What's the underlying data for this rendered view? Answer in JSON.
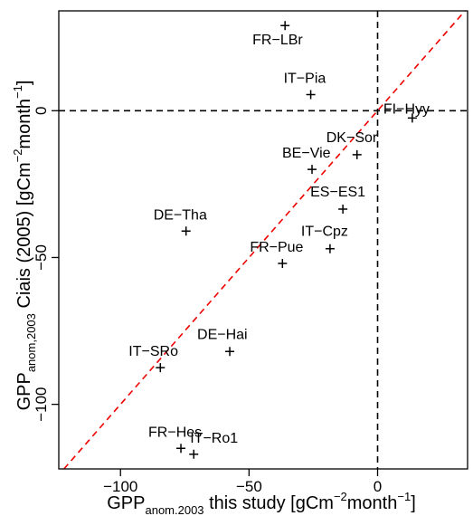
{
  "chart_data": {
    "type": "scatter",
    "xlabel": {
      "main": "GPP",
      "sub": "anom.2003",
      "rest": " this study [gCm",
      "sup": "−2",
      "unit": "month",
      "sup2": "−1",
      "close": "]"
    },
    "ylabel": {
      "main": "GPP",
      "sub": "anom,2003",
      "rest": " Ciais (2005) [gCm",
      "sup": "−2",
      "unit": "month",
      "sup2": "−1",
      "close": "]"
    },
    "xlim": [
      -124,
      35
    ],
    "ylim": [
      -122,
      34
    ],
    "xticks": [
      -100,
      -50,
      0
    ],
    "xtick_labels": [
      "−100",
      "−50",
      "0"
    ],
    "yticks": [
      -100,
      -50,
      0
    ],
    "ytick_labels": [
      "−100",
      "−50",
      "0"
    ],
    "grid": false,
    "reference_lines": [
      {
        "type": "vline",
        "x": 0
      },
      {
        "type": "hline",
        "y": 0
      },
      {
        "type": "identity",
        "color": "#ee0000"
      }
    ],
    "points": [
      {
        "label": "FR−LBr",
        "x": -36,
        "y": 29
      },
      {
        "label": "IT−Pia",
        "x": -26,
        "y": 5.5
      },
      {
        "label": "FI−Hyy",
        "x": 13.5,
        "y": -2.5
      },
      {
        "label": "DK−Sor",
        "x": -8,
        "y": -15
      },
      {
        "label": "BE−Vie",
        "x": -25.5,
        "y": -20
      },
      {
        "label": "ES−ES1",
        "x": -13.5,
        "y": -33.5
      },
      {
        "label": "DE−Tha",
        "x": -74.5,
        "y": -41
      },
      {
        "label": "IT−Cpz",
        "x": -18.5,
        "y": -47
      },
      {
        "label": "FR−Pue",
        "x": -37,
        "y": -52
      },
      {
        "label": "DE−Hai",
        "x": -57.5,
        "y": -82
      },
      {
        "label": "IT−SRo",
        "x": -84.5,
        "y": -87.5
      },
      {
        "label": "FR−Hes",
        "x": -76.5,
        "y": -115
      },
      {
        "label": "IT−Ro1",
        "x": -71.5,
        "y": -117
      }
    ]
  }
}
